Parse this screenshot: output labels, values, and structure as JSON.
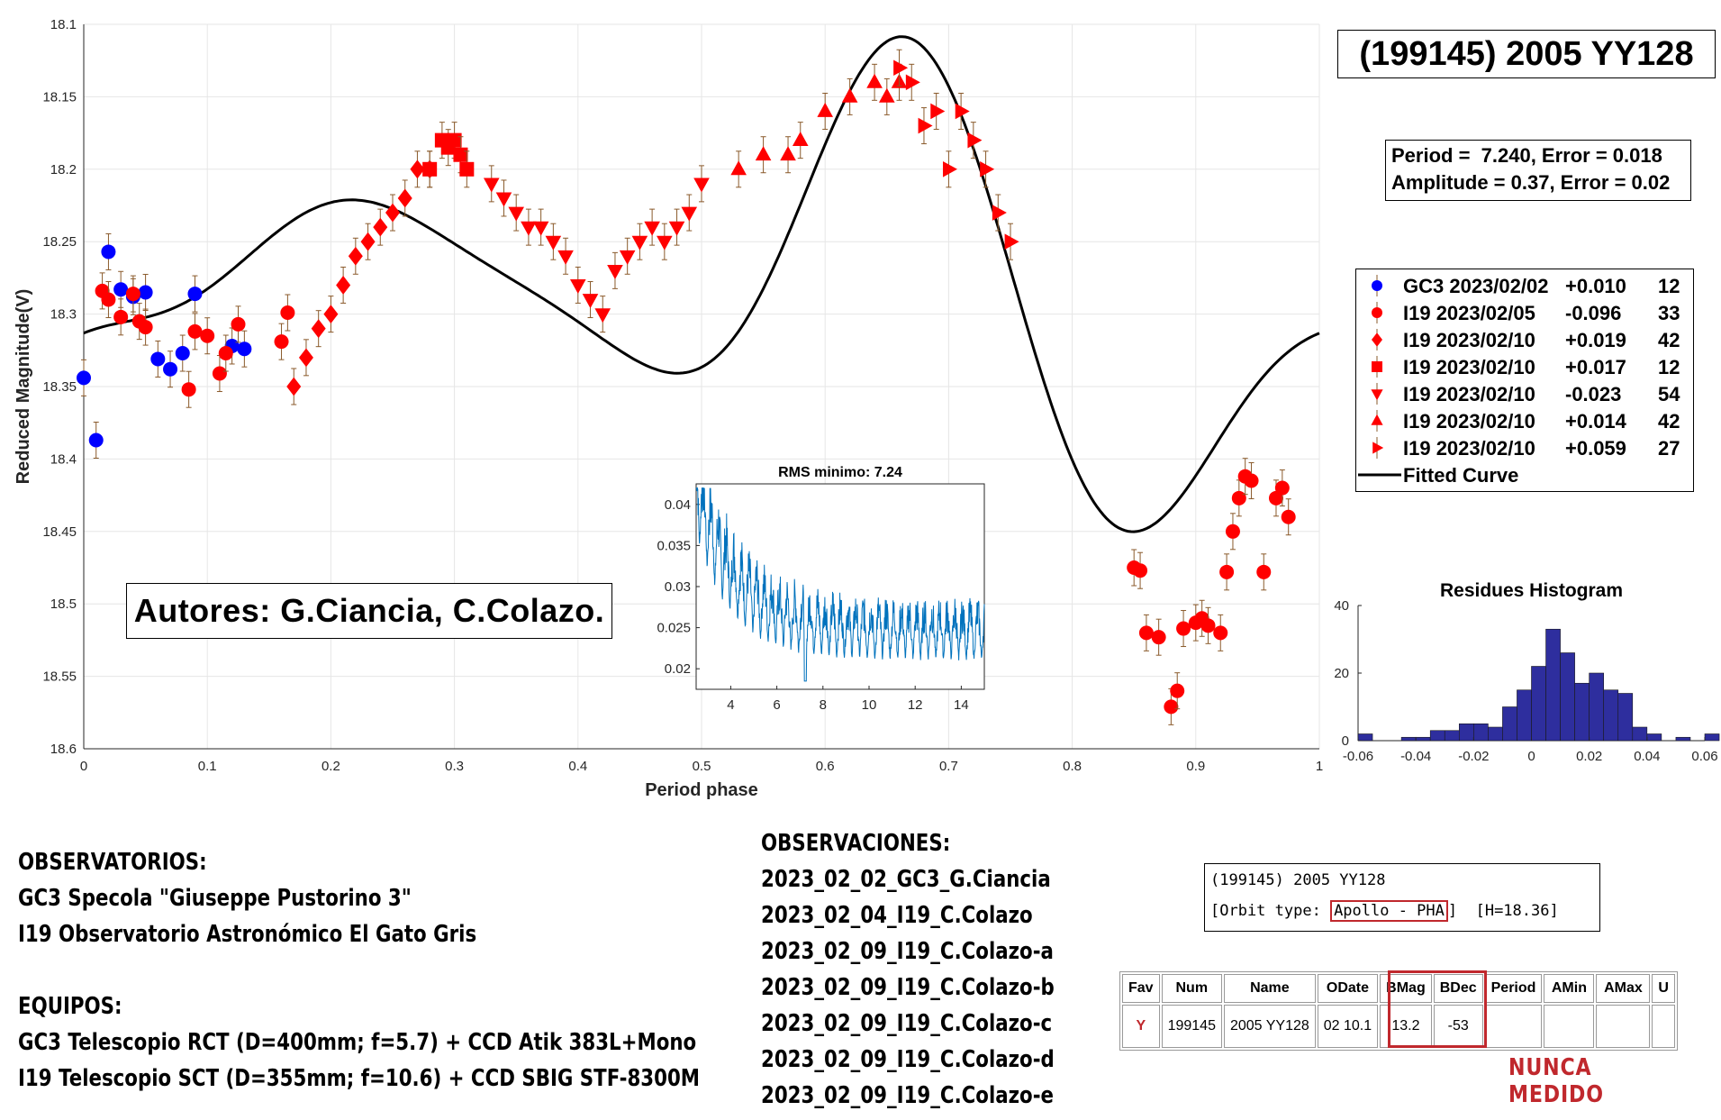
{
  "chart_data": [
    {
      "type": "scatter",
      "title": "",
      "xlabel": "Period phase",
      "ylabel": "Reduced Magnitude(V)",
      "xlim": [
        0,
        1
      ],
      "ylim": [
        18.1,
        18.6
      ],
      "y_reversed": true,
      "grid": true,
      "x_ticks": [
        "0",
        "0.1",
        "0.2",
        "0.3",
        "0.4",
        "0.5",
        "0.6",
        "0.7",
        "0.8",
        "0.9",
        "1"
      ],
      "y_ticks": [
        "18.1",
        "18.15",
        "18.2",
        "18.25",
        "18.3",
        "18.35",
        "18.4",
        "18.45",
        "18.5",
        "18.55",
        "18.6"
      ],
      "legend_placement": "right",
      "series": [
        {
          "name": "GC3 2023/02/02",
          "offset": "+0.010",
          "count": "12",
          "color": "#0000ff",
          "marker": "circle",
          "x": [
            0.0,
            0.01,
            0.02,
            0.03,
            0.04,
            0.05,
            0.06,
            0.07,
            0.08,
            0.09,
            0.12,
            0.13
          ],
          "y": [
            18.344,
            18.387,
            18.257,
            18.283,
            18.288,
            18.285,
            18.331,
            18.338,
            18.327,
            18.286,
            18.322,
            18.324
          ]
        },
        {
          "name": "I19 2023/02/05",
          "offset": "-0.096",
          "count": "33",
          "color": "#ff0000",
          "marker": "circle",
          "x": [
            0.015,
            0.02,
            0.03,
            0.04,
            0.045,
            0.05,
            0.085,
            0.09,
            0.1,
            0.11,
            0.115,
            0.125,
            0.16,
            0.165,
            0.85,
            0.855,
            0.86,
            0.87,
            0.88,
            0.885,
            0.89,
            0.9,
            0.905,
            0.91,
            0.92,
            0.925,
            0.93,
            0.935,
            0.94,
            0.945,
            0.955,
            0.965,
            0.97,
            0.975
          ],
          "y": [
            18.284,
            18.29,
            18.302,
            18.286,
            18.305,
            18.309,
            18.352,
            18.312,
            18.315,
            18.341,
            18.327,
            18.307,
            18.319,
            18.299,
            18.475,
            18.477,
            18.52,
            18.523,
            18.571,
            18.56,
            18.517,
            18.513,
            18.51,
            18.515,
            18.52,
            18.478,
            18.45,
            18.427,
            18.412,
            18.415,
            18.478,
            18.427,
            18.42,
            18.44
          ]
        },
        {
          "name": "I19 2023/02/10",
          "offset": "+0.019",
          "count": "42",
          "color": "#ff0000",
          "marker": "diamond",
          "x": [
            0.17,
            0.18,
            0.19,
            0.2,
            0.21,
            0.22,
            0.23,
            0.24,
            0.25,
            0.26,
            0.27,
            0.28
          ],
          "y": [
            18.35,
            18.33,
            18.31,
            18.3,
            18.28,
            18.26,
            18.25,
            18.24,
            18.23,
            18.22,
            18.2,
            18.2
          ]
        },
        {
          "name": "I19 2023/02/10",
          "offset": "+0.017",
          "count": "12",
          "color": "#ff0000",
          "marker": "square",
          "x": [
            0.28,
            0.29,
            0.295,
            0.3,
            0.305,
            0.31
          ],
          "y": [
            18.2,
            18.18,
            18.185,
            18.18,
            18.19,
            18.2
          ]
        },
        {
          "name": "I19 2023/02/10",
          "offset": "-0.023",
          "count": "54",
          "color": "#ff0000",
          "marker": "triangle-down",
          "x": [
            0.33,
            0.34,
            0.35,
            0.36,
            0.37,
            0.38,
            0.39,
            0.4,
            0.41,
            0.42,
            0.43,
            0.44,
            0.45,
            0.46,
            0.47,
            0.48,
            0.49,
            0.5
          ],
          "y": [
            18.21,
            18.22,
            18.23,
            18.24,
            18.24,
            18.25,
            18.26,
            18.28,
            18.29,
            18.3,
            18.27,
            18.26,
            18.25,
            18.24,
            18.25,
            18.24,
            18.23,
            18.21
          ]
        },
        {
          "name": "I19 2023/02/10",
          "offset": "+0.014",
          "count": "42",
          "color": "#ff0000",
          "marker": "triangle-up",
          "x": [
            0.53,
            0.55,
            0.57,
            0.58,
            0.6,
            0.62,
            0.64,
            0.65,
            0.66
          ],
          "y": [
            18.2,
            18.19,
            18.19,
            18.18,
            18.16,
            18.15,
            18.14,
            18.15,
            18.14
          ]
        },
        {
          "name": "I19 2023/02/10",
          "offset": "+0.059",
          "count": "27",
          "color": "#ff0000",
          "marker": "triangle-right",
          "x": [
            0.66,
            0.67,
            0.68,
            0.69,
            0.7,
            0.71,
            0.72,
            0.73,
            0.74,
            0.75
          ],
          "y": [
            18.13,
            18.14,
            18.17,
            18.16,
            18.2,
            18.16,
            18.18,
            18.2,
            18.23,
            18.25
          ]
        }
      ],
      "fitted_curve": {
        "name": "Fitted Curve",
        "color": "#000000"
      }
    },
    {
      "type": "line",
      "title": "RMS minimo: 7.24",
      "xlim": [
        2.5,
        15
      ],
      "ylim": [
        0.0175,
        0.0425
      ],
      "x_ticks": [
        "4",
        "6",
        "8",
        "10",
        "12",
        "14"
      ],
      "y_ticks": [
        "0.02",
        "0.025",
        "0.03",
        "0.035",
        "0.04"
      ],
      "color": "#0072bd"
    },
    {
      "type": "bar",
      "title": "Residues Histogram",
      "xlim": [
        -0.06,
        0.06
      ],
      "ylim": [
        0,
        40
      ],
      "x_ticks": [
        "-0.06",
        "-0.04",
        "-0.02",
        "0",
        "0.02",
        "0.04",
        "0.06"
      ],
      "y_ticks": [
        "0",
        "20",
        "40"
      ],
      "bin_width": 0.005,
      "bin_start": -0.06,
      "values": [
        2,
        0,
        0,
        1,
        1,
        3,
        3,
        5,
        5,
        4,
        10,
        15,
        22,
        33,
        26,
        17,
        20,
        15,
        14,
        4,
        2,
        0,
        1,
        0,
        2,
        0,
        1
      ],
      "color": "#2e2e9e"
    }
  ],
  "title_box": "(199145) 2005 YY128",
  "period_box": {
    "line1": "Period =  7.240, Error = 0.018",
    "line2": "Amplitude = 0.37, Error = 0.02"
  },
  "authors": "Autores: G.Ciancia, C.Colazo.",
  "observatorios": {
    "heading": "OBSERVATORIOS:",
    "lines": [
      "GC3 Specola \"Giuseppe Pustorino 3\"",
      "I19 Observatorio Astronómico El Gato Gris"
    ]
  },
  "equipos": {
    "heading": "EQUIPOS:",
    "lines": [
      "GC3 Telescopio RCT (D=400mm; f=5.7) + CCD Atik 383L+Mono",
      "I19 Telescopio SCT (D=355mm; f=10.6) + CCD SBIG STF-8300M"
    ]
  },
  "observaciones": {
    "heading": "OBSERVACIONES:",
    "lines": [
      "2023_02_02_GC3_G.Ciancia",
      "2023_02_04_I19_C.Colazo",
      "2023_02_09_I19_C.Colazo-a",
      "2023_02_09_I19_C.Colazo-b",
      "2023_02_09_I19_C.Colazo-c",
      "2023_02_09_I19_C.Colazo-d",
      "2023_02_09_I19_C.Colazo-e"
    ]
  },
  "orbit_box": {
    "line1": "(199145) 2005 YY128",
    "prefix": "[Orbit type: ",
    "highlight": "Apollo - PHA",
    "suffix": "]  [H=18.36]"
  },
  "mpc_table": {
    "headers": [
      "Fav",
      "Num",
      "Name",
      "ODate",
      "BMag",
      "BDec",
      "Period",
      "AMin",
      "AMax",
      "U"
    ],
    "row": [
      "Y",
      "199145",
      "2005 YY128",
      "02 10.1",
      "13.2",
      "-53",
      "",
      "",
      "",
      ""
    ]
  },
  "nunca": "NUNCA MEDIDO"
}
